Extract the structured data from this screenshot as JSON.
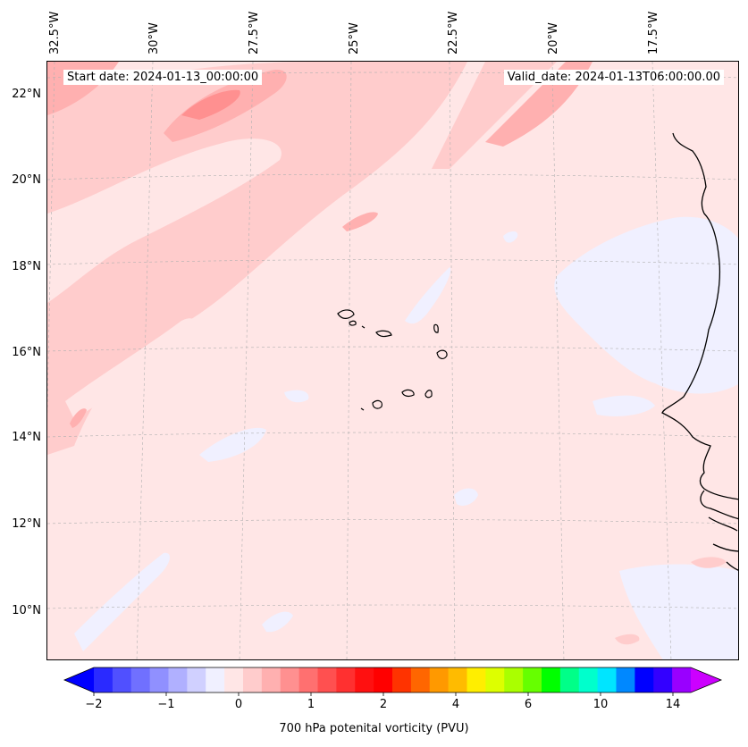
{
  "map": {
    "start_date_text": "Start date: 2024-01-13_00:00:00",
    "valid_date_text": "Valid_date: 2024-01-13T06:00:00.00",
    "lon_labels": [
      "32.5°W",
      "30°W",
      "27.5°W",
      "25°W",
      "22.5°W",
      "20°W",
      "17.5°W"
    ],
    "lat_labels": [
      "22°N",
      "20°N",
      "18°N",
      "16°N",
      "14°N",
      "12°N",
      "10°N"
    ],
    "variable": "700 hPa potential vorticity"
  },
  "colorbar": {
    "label": "700 hPa potenital vorticity (PVU)",
    "tick_labels": [
      "−2",
      "−1",
      "0",
      "1",
      "2",
      "4",
      "6",
      "10",
      "14"
    ],
    "colors": [
      "#0000ff",
      "#2a2aff",
      "#5050ff",
      "#7070ff",
      "#9090ff",
      "#b0b0ff",
      "#d0d0ff",
      "#f0f0ff",
      "#ffe6e6",
      "#ffcccc",
      "#ffb0b0",
      "#ff9090",
      "#ff7070",
      "#ff5050",
      "#ff3030",
      "#ff1010",
      "#ff0000",
      "#ff3300",
      "#ff6600",
      "#ff9900",
      "#ffbb00",
      "#ffee00",
      "#ddff00",
      "#aaff00",
      "#66ff00",
      "#00ff00",
      "#00ff88",
      "#00ffcc",
      "#00e5ff",
      "#0088ff",
      "#0000ff",
      "#3300ff",
      "#9900ff",
      "#cc00ff"
    ]
  }
}
